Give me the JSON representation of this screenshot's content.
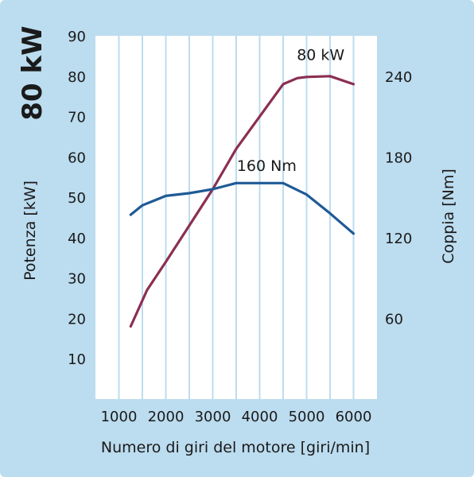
{
  "chart_data": {
    "type": "line",
    "title": "80 kW",
    "xlabel": "Numero di giri del motore [giri/min]",
    "ylabel_left": "Potenza [kW]",
    "ylabel_right": "Coppia [Nm]",
    "xlim": [
      500,
      6500
    ],
    "ylim_left": [
      0,
      90
    ],
    "ylim_right": [
      0,
      270
    ],
    "x_ticks": [
      1000,
      2000,
      3000,
      4000,
      5000,
      6000
    ],
    "y_ticks_left": [
      10,
      20,
      30,
      40,
      50,
      60,
      70,
      80,
      90
    ],
    "y_ticks_right": [
      60,
      120,
      180,
      240
    ],
    "grid": true,
    "series": [
      {
        "name": "80 kW",
        "axis": "left",
        "color": "#8b2f52",
        "x": [
          1250,
          1600,
          2000,
          2500,
          3000,
          3500,
          4000,
          4500,
          4800,
          5000,
          5500,
          6000
        ],
        "y": [
          18,
          27,
          34,
          43,
          52,
          62,
          70,
          78,
          79.5,
          79.8,
          80,
          78
        ]
      },
      {
        "name": "160 Nm",
        "axis": "right",
        "color": "#1f5a96",
        "x": [
          1250,
          1500,
          2000,
          2500,
          3000,
          3500,
          4000,
          4500,
          5000,
          5500,
          6000
        ],
        "y": [
          137,
          144,
          151,
          153,
          156,
          160.5,
          160.5,
          160.5,
          152,
          138,
          123
        ]
      }
    ],
    "annotations": [
      {
        "text": "80 kW",
        "x": 5300,
        "y": 84,
        "axis": "left"
      },
      {
        "text": "160 Nm",
        "x": 4150,
        "y": 56.5,
        "axis": "left"
      }
    ]
  }
}
